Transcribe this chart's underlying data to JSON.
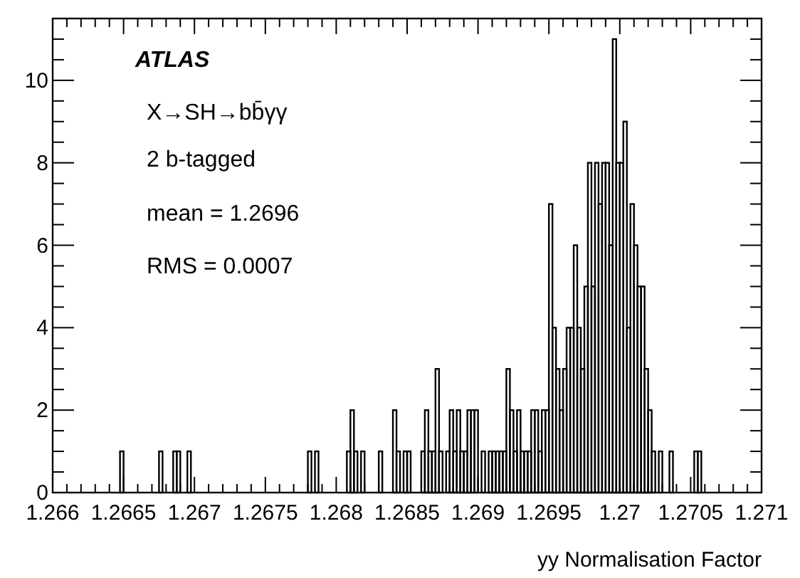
{
  "chart_data": {
    "type": "histogram",
    "xlabel": "yy Normalisation Factor",
    "color": "#000000",
    "annotations": [
      "ATLAS",
      "X→SH→bb̄γγ",
      "2 b-tagged",
      "mean = 1.2696",
      "RMS = 0.0007"
    ],
    "bins": [
      1.266,
      1.266025,
      1.26605,
      1.266075,
      1.2661,
      1.266125,
      1.26615,
      1.266175,
      1.2662,
      1.266225,
      1.26625,
      1.266275,
      1.2663,
      1.266325,
      1.26635,
      1.266375,
      1.2664,
      1.266425,
      1.26645,
      1.266475,
      1.2665,
      1.266525,
      1.26655,
      1.266575,
      1.2666,
      1.266625,
      1.26665,
      1.266675,
      1.2667,
      1.266725,
      1.26675,
      1.266775,
      1.2668,
      1.266825,
      1.26685,
      1.266875,
      1.2669,
      1.266925,
      1.26695,
      1.266975,
      1.267,
      1.267025,
      1.26705,
      1.267075,
      1.2671,
      1.267125,
      1.26715,
      1.267175,
      1.2672,
      1.267225,
      1.26725,
      1.267275,
      1.2673,
      1.267325,
      1.26735,
      1.267375,
      1.2674,
      1.267425,
      1.26745,
      1.267475,
      1.2675,
      1.267525,
      1.26755,
      1.267575,
      1.2676,
      1.267625,
      1.26765,
      1.267675,
      1.2677,
      1.267725,
      1.26775,
      1.267775,
      1.2678,
      1.267825,
      1.26785,
      1.267875,
      1.2679,
      1.267925,
      1.26795,
      1.267975,
      1.268,
      1.268025,
      1.26805,
      1.268075,
      1.2681,
      1.268125,
      1.26815,
      1.268175,
      1.2682,
      1.268225,
      1.26825,
      1.268275,
      1.2683,
      1.268325,
      1.26835,
      1.268375,
      1.2684,
      1.268425,
      1.26845,
      1.268475,
      1.2685,
      1.268525,
      1.26855,
      1.268575,
      1.2686,
      1.268625,
      1.26865,
      1.268675,
      1.2687,
      1.268725,
      1.26875,
      1.268775,
      1.2688,
      1.268825,
      1.26885,
      1.268875,
      1.2689,
      1.268925,
      1.26895,
      1.268975,
      1.269,
      1.269025,
      1.26905,
      1.269075,
      1.2691,
      1.269125,
      1.26915,
      1.269175,
      1.2692,
      1.269225,
      1.26925,
      1.269275,
      1.2693,
      1.269325,
      1.26935,
      1.269375,
      1.2694,
      1.269425,
      1.26945,
      1.269475,
      1.2695,
      1.269525,
      1.26955,
      1.269575,
      1.2696,
      1.269625,
      1.26965,
      1.269675,
      1.2697,
      1.269725,
      1.26975,
      1.269775,
      1.2698,
      1.269825,
      1.26985,
      1.269875,
      1.2699,
      1.269925,
      1.26995,
      1.269975,
      1.27,
      1.270025,
      1.27005,
      1.270075,
      1.2701,
      1.270125,
      1.27015,
      1.270175,
      1.2702,
      1.270225,
      1.27025,
      1.270275,
      1.2703,
      1.270325,
      1.27035,
      1.270375,
      1.2704,
      1.270425,
      1.27045,
      1.270475,
      1.2705,
      1.270525,
      1.27055,
      1.270575,
      1.2706,
      1.270625,
      1.27065,
      1.270675,
      1.2707,
      1.270725,
      1.27075,
      1.270775,
      1.2708,
      1.270825,
      1.27085,
      1.270875,
      1.2709,
      1.270925,
      1.27095,
      1.270975,
      1.271
    ],
    "values": [
      0,
      0,
      0,
      0,
      0,
      0,
      0,
      0,
      0,
      0,
      0,
      0,
      0,
      0,
      0,
      0,
      0,
      0,
      0,
      1,
      0,
      0,
      0,
      0,
      0,
      0,
      0,
      0,
      0,
      0,
      1,
      0,
      0,
      0,
      1,
      1,
      0,
      0,
      1,
      0,
      0,
      0,
      0,
      0,
      0,
      0,
      0,
      0,
      0,
      0,
      0,
      0,
      0,
      0,
      0,
      0,
      0,
      0,
      0,
      0,
      0,
      0,
      0,
      0,
      0,
      0,
      0,
      0,
      0,
      0,
      0,
      0,
      1,
      0,
      1,
      0,
      0,
      0,
      0,
      0,
      0,
      0,
      0,
      1,
      2,
      1,
      0,
      1,
      0,
      0,
      0,
      0,
      1,
      0,
      0,
      0,
      2,
      1,
      0,
      1,
      1,
      0,
      0,
      0,
      1,
      2,
      1,
      1,
      3,
      1,
      0,
      1,
      2,
      1,
      2,
      1,
      1,
      2,
      2,
      2,
      0,
      1,
      0,
      1,
      1,
      1,
      1,
      1,
      3,
      2,
      1,
      2,
      1,
      1,
      1,
      2,
      2,
      1,
      2,
      2,
      7,
      4,
      3,
      2,
      3,
      4,
      4,
      6,
      4,
      3,
      5,
      8,
      5,
      8,
      7,
      8,
      8,
      6,
      11,
      8,
      8,
      9,
      4,
      7,
      6,
      5,
      5,
      3,
      2,
      1,
      0,
      1,
      0,
      0,
      1,
      0,
      0,
      0,
      0,
      0,
      0,
      1,
      1,
      0,
      0,
      0,
      0,
      0,
      0,
      0,
      0,
      0,
      0,
      0,
      0,
      0,
      0,
      0,
      0,
      0
    ],
    "xlim": [
      1.266,
      1.271
    ],
    "xticks": [
      1.266,
      {
        "value": 1.2661,
        "label": null
      },
      {
        "value": 1.2662,
        "label": null
      },
      {
        "value": 1.2663,
        "label": null
      },
      {
        "value": 1.2664,
        "label": null
      },
      1.2665,
      {
        "value": 1.2666,
        "label": null
      },
      {
        "value": 1.2667,
        "label": null
      },
      {
        "value": 1.2668,
        "label": null
      },
      {
        "value": 1.2669,
        "label": null
      },
      1.267,
      {
        "value": 1.2671,
        "label": null
      },
      {
        "value": 1.2672,
        "label": null
      },
      {
        "value": 1.2673,
        "label": null
      },
      {
        "value": 1.2674,
        "label": null
      },
      1.2675,
      {
        "value": 1.2676,
        "label": null
      },
      {
        "value": 1.2677,
        "label": null
      },
      {
        "value": 1.2678,
        "label": null
      },
      {
        "value": 1.2679,
        "label": null
      },
      1.268,
      {
        "value": 1.2681,
        "label": null
      },
      {
        "value": 1.2682,
        "label": null
      },
      {
        "value": 1.2683,
        "label": null
      },
      {
        "value": 1.2684,
        "label": null
      },
      1.2685,
      {
        "value": 1.2686,
        "label": null
      },
      {
        "value": 1.2687,
        "label": null
      },
      {
        "value": 1.2688,
        "label": null
      },
      {
        "value": 1.2689,
        "label": null
      },
      1.269,
      {
        "value": 1.2691,
        "label": null
      },
      {
        "value": 1.2692,
        "label": null
      },
      {
        "value": 1.2693,
        "label": null
      },
      {
        "value": 1.2694,
        "label": null
      },
      1.2695,
      {
        "value": 1.2696,
        "label": null
      },
      {
        "value": 1.2697,
        "label": null
      },
      {
        "value": 1.2698,
        "label": null
      },
      {
        "value": 1.2699,
        "label": null
      },
      1.27,
      {
        "value": 1.2701,
        "label": null
      },
      {
        "value": 1.2702,
        "label": null
      },
      {
        "value": 1.2703,
        "label": null
      },
      {
        "value": 1.2704,
        "label": null
      },
      1.2705,
      {
        "value": 1.2706,
        "label": null
      },
      {
        "value": 1.2707,
        "label": null
      },
      {
        "value": 1.2708,
        "label": null
      },
      {
        "value": 1.2709,
        "label": null
      },
      1.271
    ],
    "ylim": [
      0,
      11.5
    ],
    "yticks": [
      0,
      {
        "value": 0.5,
        "label": null
      },
      {
        "value": 1,
        "label": null
      },
      {
        "value": 1.5,
        "label": null
      },
      2,
      {
        "value": 2.5,
        "label": null
      },
      {
        "value": 3,
        "label": null
      },
      {
        "value": 3.5,
        "label": null
      },
      4,
      {
        "value": 4.5,
        "label": null
      },
      {
        "value": 5,
        "label": null
      },
      {
        "value": 5.5,
        "label": null
      },
      6,
      {
        "value": 6.5,
        "label": null
      },
      {
        "value": 7,
        "label": null
      },
      {
        "value": 7.5,
        "label": null
      },
      8,
      {
        "value": 8.5,
        "label": null
      },
      {
        "value": 9,
        "label": null
      },
      {
        "value": 9.5,
        "label": null
      },
      10,
      {
        "value": 10.5,
        "label": null
      },
      {
        "value": 11,
        "label": null
      },
      {
        "value": 11.5,
        "label": null
      }
    ]
  }
}
